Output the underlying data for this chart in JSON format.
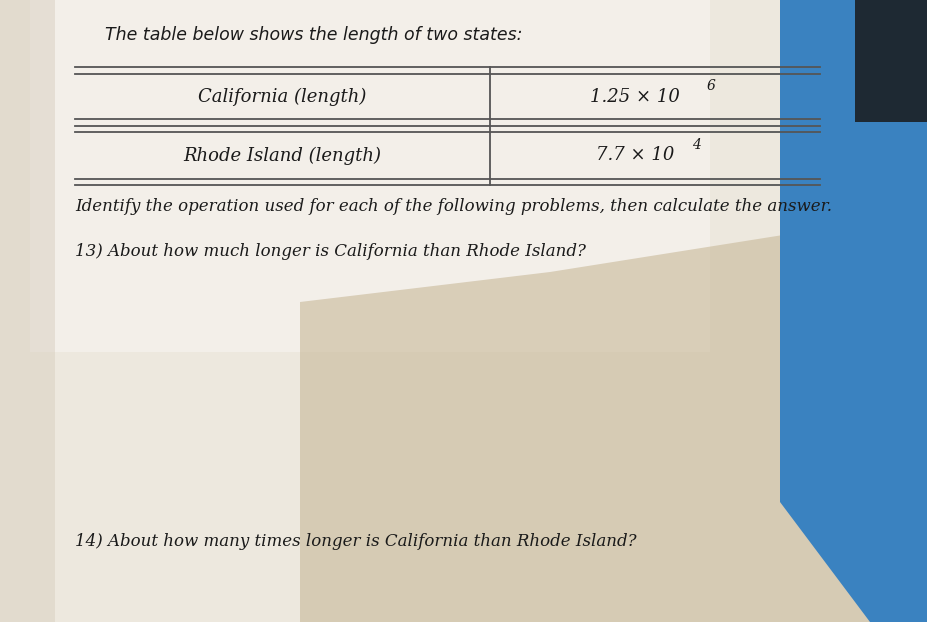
{
  "title_text": "The table below shows the length of two states:",
  "row1_label": "California (length)",
  "row1_value_base": "1.25 × 10",
  "row1_value_exp": "6",
  "row2_label": "Rhode Island (length)",
  "row2_value_base": "7.7 × 10",
  "row2_value_exp": "4",
  "instruction_text": "Identify the operation used for each of the following problems, then calculate the answer.",
  "q13_text": "13) About how much longer is California than Rhode Island?",
  "q14_text": "14) About how many times longer is California than Rhode Island?",
  "bg_paper_light": "#f0ece4",
  "bg_paper_mid": "#ddd0bc",
  "bg_paper_dark": "#c8b898",
  "bg_blue": "#3a82c0",
  "table_line_color": "#555555",
  "text_color": "#1a1a1a",
  "title_fontsize": 12.5,
  "body_fontsize": 12,
  "table_fontsize": 13
}
